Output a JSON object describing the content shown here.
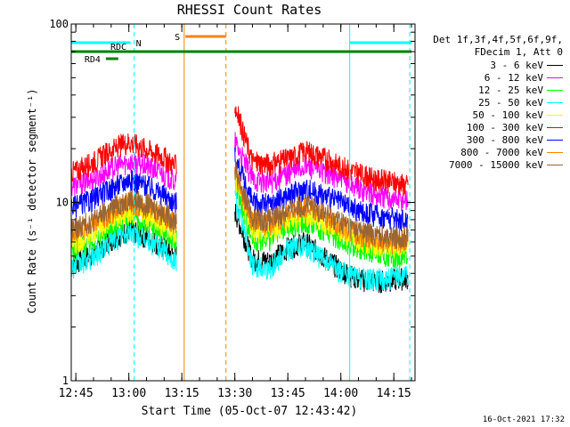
{
  "chart_data": {
    "type": "line",
    "title": "RHESSI Count Rates",
    "xlabel": "Start Time (05-Oct-07 12:43:42)",
    "ylabel": "Count Rate (s⁻¹ detector segment⁻¹)",
    "y_scale": "log",
    "ylim": [
      1,
      100
    ],
    "y_ticks": [
      "1",
      "10",
      "100"
    ],
    "xlim": [
      "12:43:42",
      "14:21:00"
    ],
    "x_ticks": [
      "12:45",
      "13:00",
      "13:15",
      "13:30",
      "13:45",
      "14:00",
      "14:15"
    ],
    "legend_header": [
      "Det 1f,3f,4f,5f,6f,9f,",
      "FDecim 1, Att 0"
    ],
    "data_gap": [
      "13:13:30",
      "13:30:00"
    ],
    "x": [
      "12:45",
      "12:50",
      "12:55",
      "13:00",
      "13:05",
      "13:10",
      "13:13",
      "13:30",
      "13:35",
      "13:40",
      "13:45",
      "13:50",
      "13:55",
      "14:00",
      "14:05",
      "14:10",
      "14:15",
      "14:19"
    ],
    "series": [
      {
        "name": "3 - 6 keV",
        "color": "#000000",
        "values": [
          4.6,
          5.2,
          6.2,
          7.0,
          6.4,
          5.6,
          5.0,
          9.0,
          4.8,
          4.7,
          5.6,
          6.0,
          5.0,
          4.2,
          3.7,
          3.6,
          3.7,
          3.8
        ]
      },
      {
        "name": "6 - 12 keV",
        "color": "#ff00ff",
        "values": [
          12.5,
          13.5,
          15.5,
          17.0,
          16.0,
          14.5,
          13.0,
          22.0,
          13.5,
          13.0,
          14.5,
          16.0,
          15.0,
          13.5,
          12.0,
          11.0,
          10.5,
          10.5
        ]
      },
      {
        "name": "12 - 25 keV",
        "color": "#00ff00",
        "values": [
          5.5,
          6.2,
          7.3,
          8.0,
          7.5,
          6.8,
          6.0,
          13.0,
          6.3,
          6.2,
          7.3,
          7.8,
          7.0,
          6.2,
          5.6,
          5.2,
          5.0,
          5.2
        ]
      },
      {
        "name": "25 - 50 keV",
        "color": "#00ffff",
        "values": [
          4.4,
          5.0,
          6.0,
          6.8,
          6.2,
          5.4,
          4.7,
          11.0,
          4.5,
          4.3,
          5.5,
          5.8,
          4.8,
          4.1,
          3.8,
          3.7,
          3.8,
          3.9
        ]
      },
      {
        "name": "50 - 100 keV",
        "color": "#ffff00",
        "values": [
          6.0,
          6.8,
          8.0,
          9.0,
          8.5,
          7.5,
          6.8,
          14.0,
          7.0,
          6.9,
          8.0,
          8.6,
          7.8,
          6.8,
          6.2,
          5.8,
          5.6,
          5.8
        ]
      },
      {
        "name": "100 - 300 keV",
        "color": "#ff0000",
        "values": [
          15.0,
          17.0,
          19.5,
          22.0,
          20.0,
          18.0,
          16.0,
          35.0,
          17.0,
          16.5,
          17.5,
          19.5,
          18.0,
          16.0,
          14.5,
          13.5,
          13.0,
          12.5
        ]
      },
      {
        "name": "300 - 800 keV",
        "color": "#0000ff",
        "values": [
          9.5,
          10.5,
          12.0,
          13.5,
          12.5,
          11.0,
          10.0,
          18.0,
          10.0,
          9.8,
          11.0,
          12.0,
          11.0,
          10.0,
          9.0,
          8.5,
          8.2,
          8.0
        ]
      },
      {
        "name": "800 - 7000 keV",
        "color": "#ff8000",
        "values": [
          6.8,
          7.6,
          8.8,
          10.0,
          9.4,
          8.4,
          7.6,
          15.0,
          7.8,
          7.6,
          8.6,
          9.4,
          8.4,
          7.4,
          6.6,
          6.2,
          6.0,
          6.2
        ]
      },
      {
        "name": "7000 - 15000 keV",
        "color": "#996633",
        "values": [
          7.2,
          8.0,
          9.2,
          10.5,
          9.8,
          8.8,
          8.0,
          15.5,
          8.2,
          8.0,
          9.0,
          9.8,
          8.8,
          7.8,
          7.0,
          6.6,
          6.4,
          6.6
        ]
      }
    ],
    "flags": [
      {
        "label": "N",
        "color": "#00ffff",
        "segments": [
          [
            "12:43:42",
            "13:00:30"
          ],
          [
            "14:02:30",
            "14:20:00"
          ]
        ]
      },
      {
        "label": "S",
        "color": "#ff8000",
        "segments": [
          [
            "13:16:00",
            "13:27:30"
          ]
        ]
      },
      {
        "label": "RDC",
        "color": "#008000",
        "segments": [
          [
            "12:43:42",
            "14:20:00"
          ]
        ]
      },
      {
        "label": "RD4",
        "color": "#008000",
        "segments": [
          [
            "12:53:30",
            "12:57:00"
          ]
        ]
      }
    ],
    "vertical_markers": [
      {
        "time": "12:43:42",
        "color": "#00ffff",
        "style": "solid"
      },
      {
        "time": "13:01:30",
        "color": "#00ffff",
        "style": "dashed"
      },
      {
        "time": "13:15:40",
        "color": "#ff8000",
        "style": "solid"
      },
      {
        "time": "13:27:30",
        "color": "#ff8000",
        "style": "dashed"
      },
      {
        "time": "14:02:30",
        "color": "#00ffff",
        "style": "solid"
      },
      {
        "time": "14:19:30",
        "color": "#00ffff",
        "style": "dashed"
      }
    ],
    "timestamp": "16-Oct-2021 17:32"
  }
}
